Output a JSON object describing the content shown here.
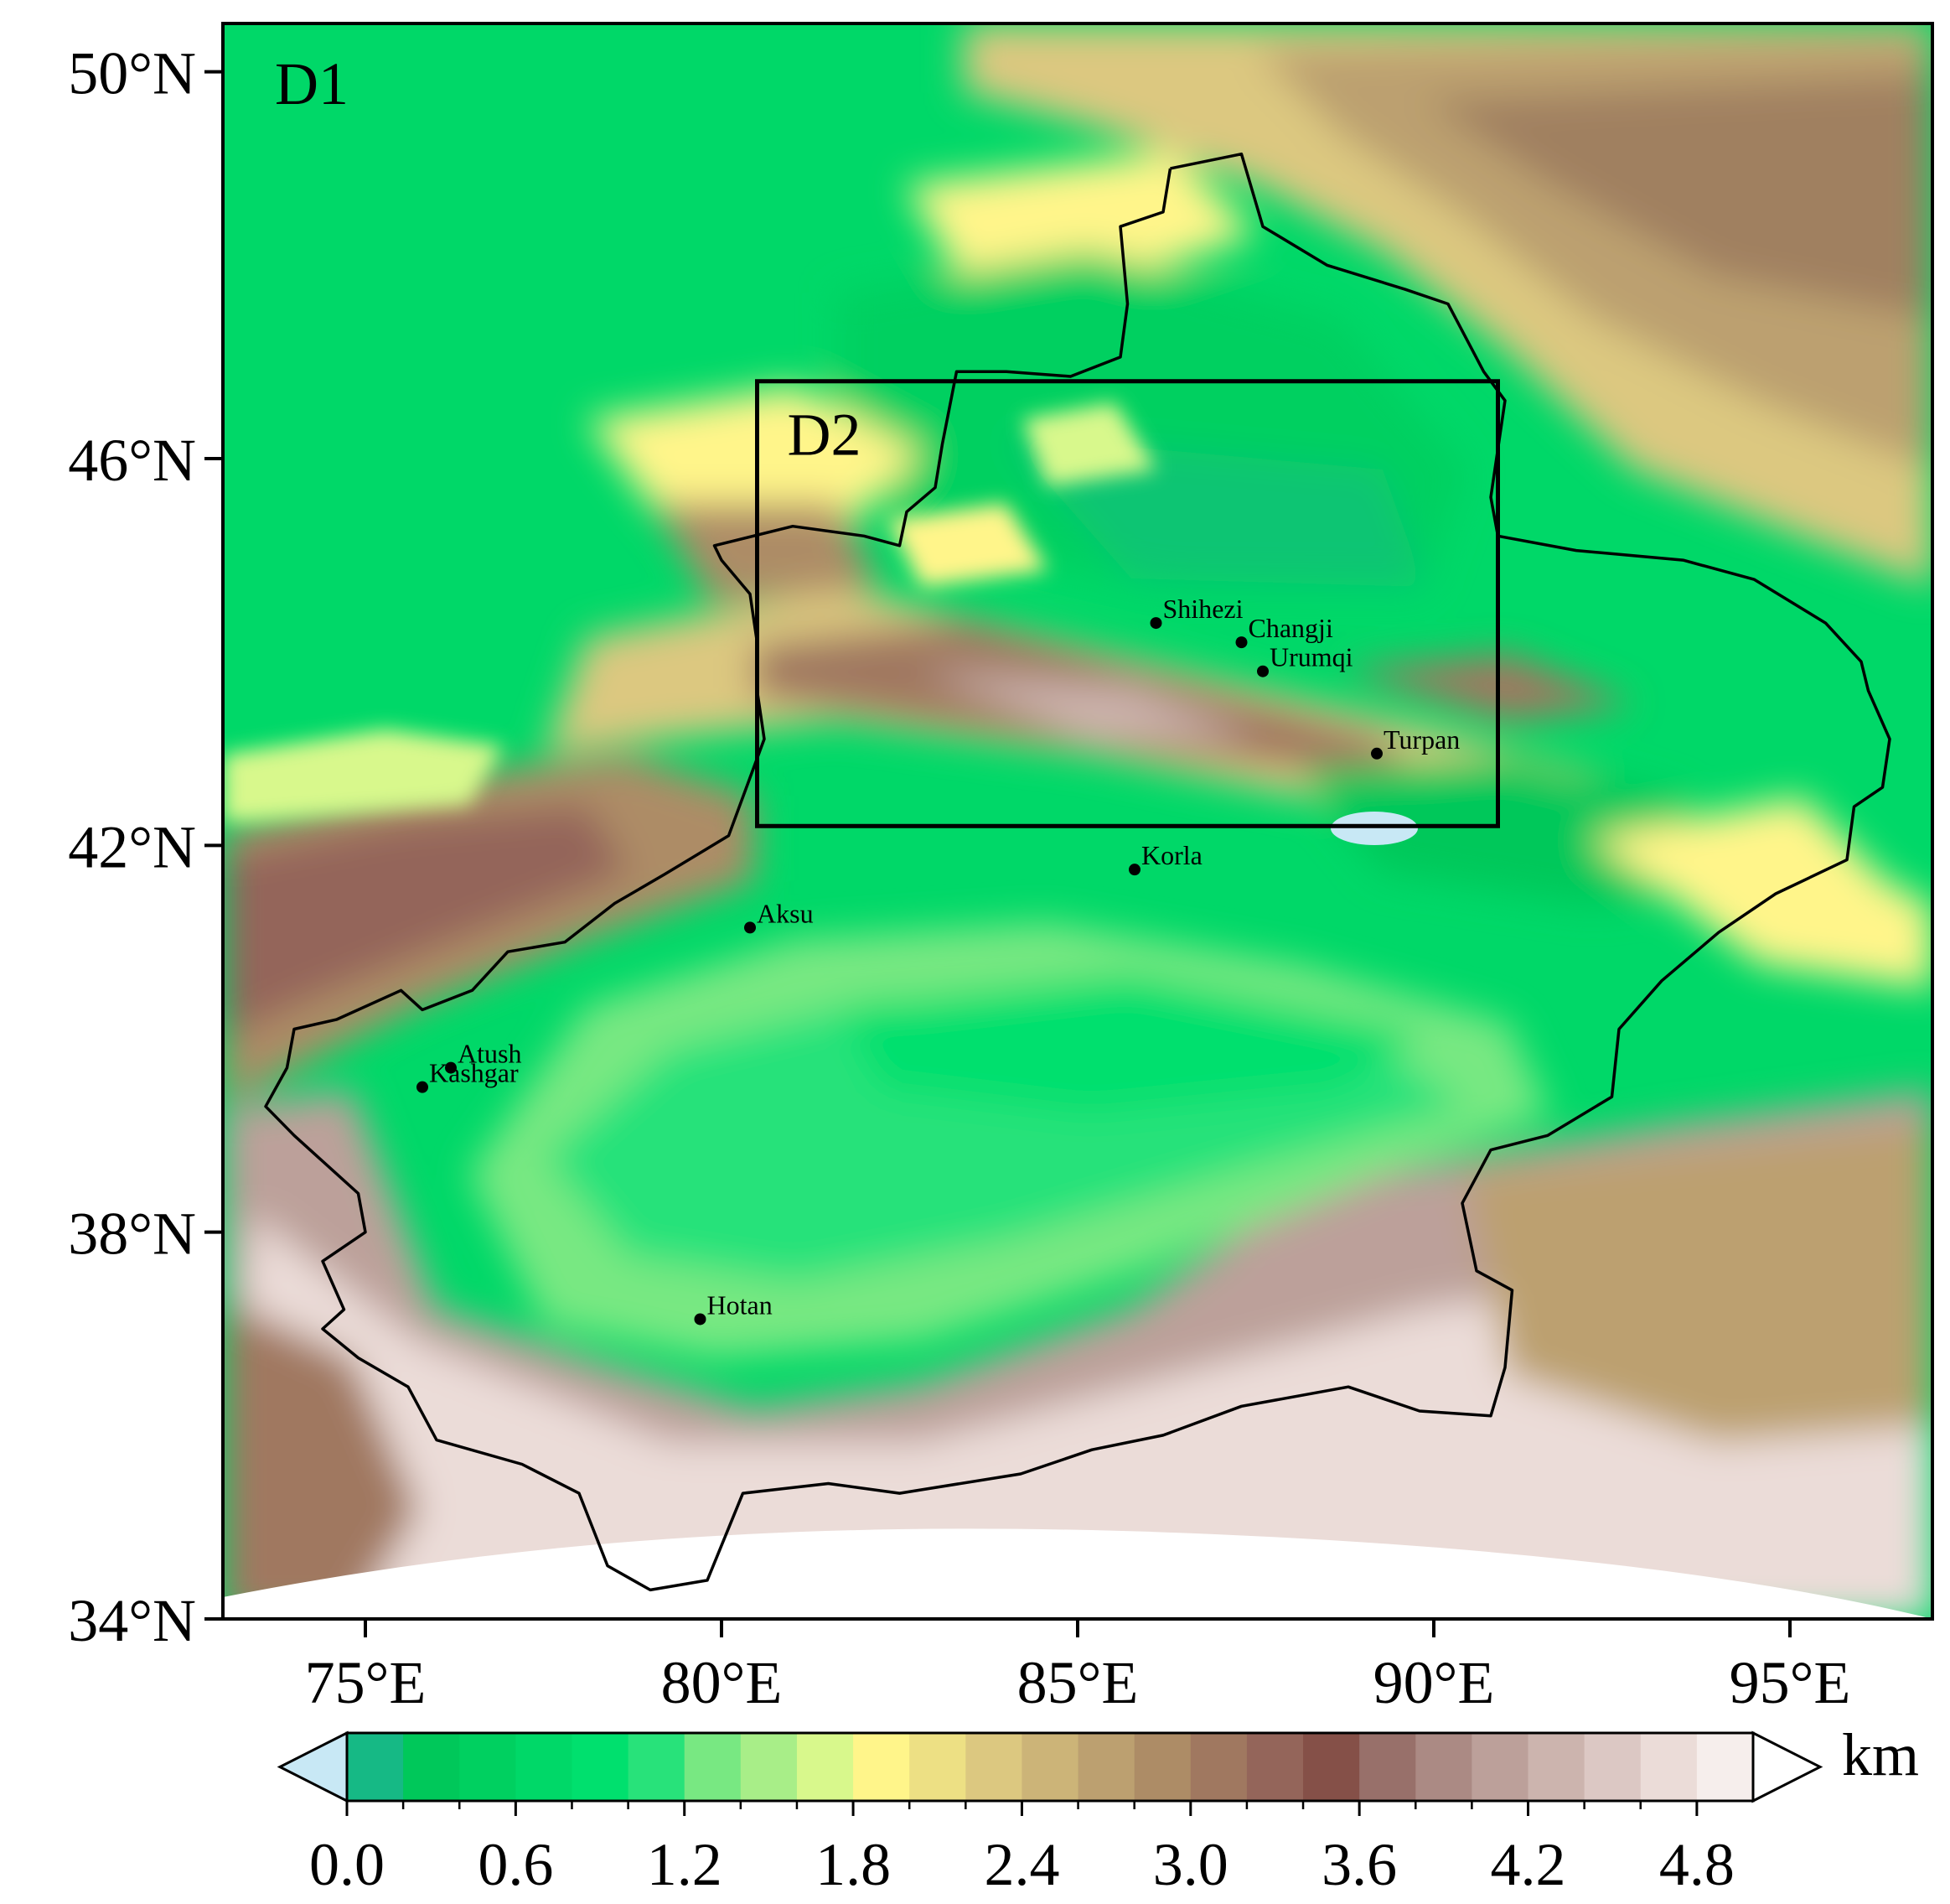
{
  "map": {
    "domain_outer_label": "D1",
    "domain_inner_label": "D2",
    "inner_domain_bounds": {
      "lon": [
        80.5,
        90.9
      ],
      "lat": [
        42.2,
        46.8
      ]
    },
    "lon_range": [
      73.0,
      97.0
    ],
    "lat_range": [
      34.0,
      50.5
    ],
    "lon_ticks": [
      {
        "value": 75,
        "label": "75°E"
      },
      {
        "value": 80,
        "label": "80°E"
      },
      {
        "value": 85,
        "label": "85°E"
      },
      {
        "value": 90,
        "label": "90°E"
      },
      {
        "value": 95,
        "label": "95°E"
      }
    ],
    "lat_ticks": [
      {
        "value": 50,
        "label": "50°N"
      },
      {
        "value": 46,
        "label": "46°N"
      },
      {
        "value": 42,
        "label": "42°N"
      },
      {
        "value": 38,
        "label": "38°N"
      },
      {
        "value": 34,
        "label": "34°N"
      }
    ],
    "cities": [
      {
        "name": "Shihezi",
        "lon": 86.1,
        "lat": 44.3
      },
      {
        "name": "Changji",
        "lon": 87.3,
        "lat": 44.1
      },
      {
        "name": "Urumqi",
        "lon": 87.6,
        "lat": 43.8
      },
      {
        "name": "Turpan",
        "lon": 89.2,
        "lat": 42.95
      },
      {
        "name": "Korla",
        "lon": 85.8,
        "lat": 41.75
      },
      {
        "name": "Aksu",
        "lon": 80.4,
        "lat": 41.15
      },
      {
        "name": "Atush",
        "lon": 76.2,
        "lat": 39.7
      },
      {
        "name": "Kashgar",
        "lon": 75.8,
        "lat": 39.5
      },
      {
        "name": "Hotan",
        "lon": 79.7,
        "lat": 37.1
      }
    ],
    "xinjiang_border": [
      [
        86.3,
        49.0
      ],
      [
        87.3,
        49.15
      ],
      [
        87.6,
        48.4
      ],
      [
        88.5,
        48.0
      ],
      [
        89.6,
        47.75
      ],
      [
        90.2,
        47.6
      ],
      [
        90.7,
        46.9
      ],
      [
        91.0,
        46.6
      ],
      [
        90.8,
        45.6
      ],
      [
        90.9,
        45.2
      ],
      [
        92.0,
        45.05
      ],
      [
        93.5,
        44.95
      ],
      [
        94.5,
        44.75
      ],
      [
        95.5,
        44.3
      ],
      [
        96.0,
        43.9
      ],
      [
        96.1,
        43.6
      ],
      [
        96.4,
        43.1
      ],
      [
        96.3,
        42.6
      ],
      [
        95.9,
        42.4
      ],
      [
        95.8,
        41.85
      ],
      [
        94.8,
        41.5
      ],
      [
        94.0,
        41.1
      ],
      [
        93.2,
        40.6
      ],
      [
        92.6,
        40.1
      ],
      [
        92.5,
        39.4
      ],
      [
        91.6,
        39.0
      ],
      [
        90.8,
        38.85
      ],
      [
        90.4,
        38.3
      ],
      [
        90.6,
        37.6
      ],
      [
        91.1,
        37.4
      ],
      [
        91.0,
        36.6
      ],
      [
        90.8,
        36.1
      ],
      [
        89.8,
        36.15
      ],
      [
        88.8,
        36.4
      ],
      [
        87.3,
        36.2
      ],
      [
        86.2,
        35.9
      ],
      [
        85.2,
        35.75
      ],
      [
        84.2,
        35.5
      ],
      [
        82.5,
        35.3
      ],
      [
        81.5,
        35.4
      ],
      [
        80.3,
        35.3
      ],
      [
        79.8,
        34.4
      ],
      [
        79.0,
        34.3
      ],
      [
        78.4,
        34.55
      ],
      [
        78.0,
        35.3
      ],
      [
        77.2,
        35.6
      ],
      [
        76.0,
        35.85
      ],
      [
        75.6,
        36.4
      ],
      [
        74.9,
        36.7
      ],
      [
        74.4,
        37.0
      ],
      [
        74.7,
        37.2
      ],
      [
        74.4,
        37.7
      ],
      [
        75.0,
        38.0
      ],
      [
        74.9,
        38.4
      ],
      [
        74.0,
        39.0
      ],
      [
        73.6,
        39.3
      ],
      [
        73.9,
        39.7
      ],
      [
        74.0,
        40.1
      ],
      [
        74.6,
        40.2
      ],
      [
        75.5,
        40.5
      ],
      [
        75.8,
        40.3
      ],
      [
        76.5,
        40.5
      ],
      [
        77.0,
        40.9
      ],
      [
        77.8,
        41.0
      ],
      [
        78.5,
        41.4
      ],
      [
        79.2,
        41.7
      ],
      [
        80.1,
        42.1
      ],
      [
        80.4,
        42.7
      ],
      [
        80.6,
        43.1
      ],
      [
        80.5,
        43.6
      ],
      [
        80.5,
        44.1
      ],
      [
        80.4,
        44.6
      ],
      [
        80.0,
        44.95
      ],
      [
        79.9,
        45.1
      ],
      [
        81.0,
        45.3
      ],
      [
        82.0,
        45.2
      ],
      [
        82.5,
        45.1
      ],
      [
        82.6,
        45.45
      ],
      [
        83.0,
        45.7
      ],
      [
        83.1,
        46.15
      ],
      [
        83.3,
        46.9
      ],
      [
        84.0,
        46.9
      ],
      [
        84.9,
        46.85
      ],
      [
        85.6,
        47.05
      ],
      [
        85.7,
        47.6
      ],
      [
        85.6,
        48.4
      ],
      [
        86.2,
        48.55
      ],
      [
        86.3,
        49.0
      ]
    ],
    "lake": {
      "name": "Ebinur/Aydingkol",
      "lon": 89.8,
      "lat": 42.7
    }
  },
  "colorbar": {
    "unit": "km",
    "tick_values": [
      0.0,
      0.6,
      1.2,
      1.8,
      2.4,
      3.0,
      3.6,
      4.2,
      4.8
    ],
    "tick_labels": [
      "0.0",
      "0.6",
      "1.2",
      "1.8",
      "2.4",
      "3.0",
      "3.6",
      "4.2",
      "4.8"
    ],
    "min": 0.0,
    "max": 5.0,
    "extend": "both",
    "under_color": "#c8e8f5",
    "over_color": "#ffffff",
    "levels": [
      {
        "from": 0.0,
        "color": "#16b985"
      },
      {
        "from": 0.2,
        "color": "#00c85a"
      },
      {
        "from": 0.4,
        "color": "#00d060"
      },
      {
        "from": 0.6,
        "color": "#00d868"
      },
      {
        "from": 0.8,
        "color": "#00e06e"
      },
      {
        "from": 1.0,
        "color": "#28e27a"
      },
      {
        "from": 1.2,
        "color": "#78e882"
      },
      {
        "from": 1.4,
        "color": "#a8ee88"
      },
      {
        "from": 1.6,
        "color": "#d8f88c"
      },
      {
        "from": 1.8,
        "color": "#fff58a"
      },
      {
        "from": 2.0,
        "color": "#ede084"
      },
      {
        "from": 2.2,
        "color": "#dcc880"
      },
      {
        "from": 2.4,
        "color": "#ccb478"
      },
      {
        "from": 2.6,
        "color": "#bca070"
      },
      {
        "from": 2.8,
        "color": "#ad8c66"
      },
      {
        "from": 3.0,
        "color": "#a07860"
      },
      {
        "from": 3.2,
        "color": "#94655a"
      },
      {
        "from": 3.4,
        "color": "#855048"
      },
      {
        "from": 3.6,
        "color": "#98706a"
      },
      {
        "from": 3.8,
        "color": "#ab8a84"
      },
      {
        "from": 4.0,
        "color": "#bca09a"
      },
      {
        "from": 4.2,
        "color": "#ccb4ae"
      },
      {
        "from": 4.4,
        "color": "#dcc8c4"
      },
      {
        "from": 4.6,
        "color": "#ebdcd8"
      },
      {
        "from": 4.8,
        "color": "#f6eeec"
      }
    ]
  }
}
